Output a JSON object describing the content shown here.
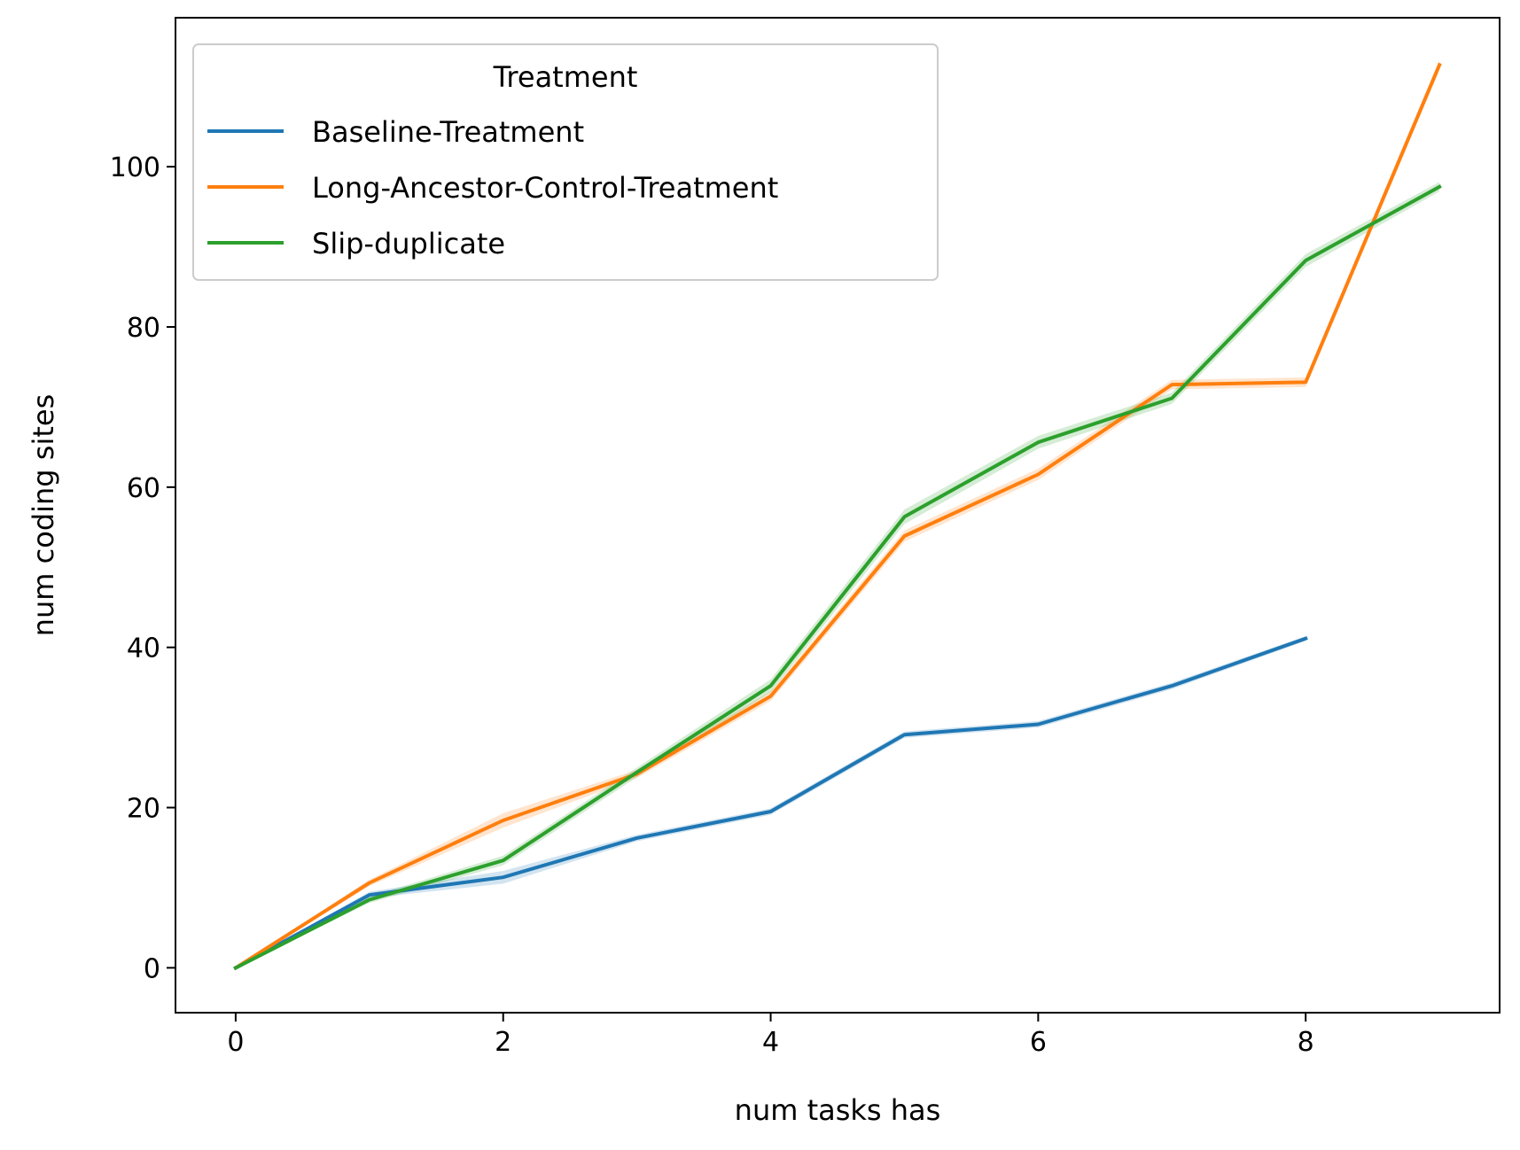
{
  "chart_data": {
    "type": "line",
    "title": "",
    "xlabel": "num tasks has",
    "ylabel": "num coding sites",
    "xlim": [
      -0.45,
      9.45
    ],
    "ylim": [
      -5.6,
      118.6
    ],
    "xticks": [
      0,
      2,
      4,
      6,
      8
    ],
    "yticks": [
      0,
      20,
      40,
      60,
      80,
      100
    ],
    "xtick_labels": [
      "0",
      "2",
      "4",
      "6",
      "8"
    ],
    "ytick_labels": [
      "0",
      "20",
      "40",
      "60",
      "80",
      "100"
    ],
    "grid": false,
    "legend": {
      "title": "Treatment",
      "placement": "top-left"
    },
    "series": [
      {
        "name": "Baseline-Treatment",
        "color": "#1f77b4",
        "x": [
          0,
          1,
          2,
          3,
          4,
          5,
          6,
          7,
          8
        ],
        "y": [
          0,
          9.1,
          11.3,
          16.2,
          19.5,
          29.1,
          30.4,
          35.2,
          41.1
        ],
        "band": [
          0,
          0.4,
          0.8,
          0.4,
          0.4,
          0.4,
          0.4,
          0.4,
          0.3
        ]
      },
      {
        "name": "Long-Ancestor-Control-Treatment",
        "color": "#ff7f0e",
        "x": [
          0,
          1,
          2,
          3,
          4,
          5,
          6,
          7,
          8,
          9
        ],
        "y": [
          0,
          10.6,
          18.4,
          24.2,
          33.9,
          53.9,
          61.6,
          72.8,
          73.1,
          112.7
        ],
        "band": [
          0,
          0.4,
          0.9,
          0.5,
          0.6,
          0.7,
          0.7,
          0.6,
          0.6,
          0.6
        ]
      },
      {
        "name": "Slip-duplicate",
        "color": "#2ca02c",
        "x": [
          0,
          1,
          2,
          3,
          4,
          5,
          6,
          7,
          8,
          9
        ],
        "y": [
          0,
          8.5,
          13.4,
          24.4,
          35.2,
          56.3,
          65.6,
          71.1,
          88.3,
          97.5
        ],
        "band": [
          0,
          0.4,
          0.6,
          0.6,
          0.8,
          0.9,
          0.8,
          0.7,
          0.8,
          0.6
        ]
      }
    ]
  }
}
